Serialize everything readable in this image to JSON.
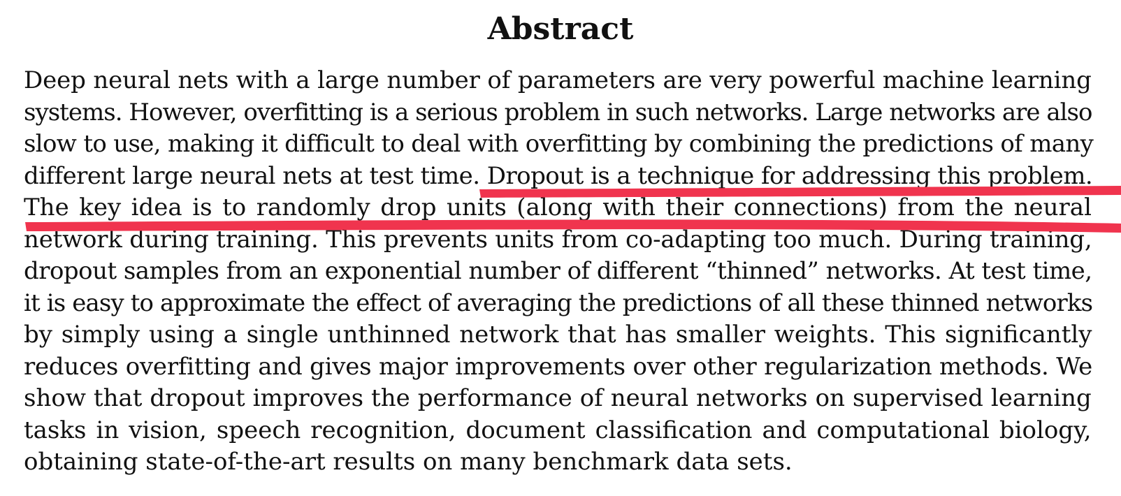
{
  "title": "Abstract",
  "lines": [
    "Deep neural nets with a large number of parameters are very powerful machine learning",
    "systems. However, overfitting is a serious problem in such networks. Large networks are also",
    "slow to use, making it difficult to deal with overfitting by combining the predictions of many",
    "different large neural nets at test time. Dropout is a technique for addressing this problem.",
    "The key idea is to randomly drop units (along with their connections) from the neural",
    "network during training. This prevents units from co-adapting too much. During training,",
    "dropout samples from an exponential number of different “thinned” networks. At test time,",
    "it is easy to approximate the effect of averaging the predictions of all these thinned networks",
    "by simply using a single unthinned network that has smaller weights. This significantly",
    "reduces overfitting and gives major improvements over other regularization methods. We",
    "show that dropout improves the performance of neural networks on supervised learning",
    "tasks in vision, speech recognition, document classification and computational biology,",
    "obtaining state-of-the-art results on many benchmark data sets."
  ],
  "highlight_color": "#f0344e"
}
